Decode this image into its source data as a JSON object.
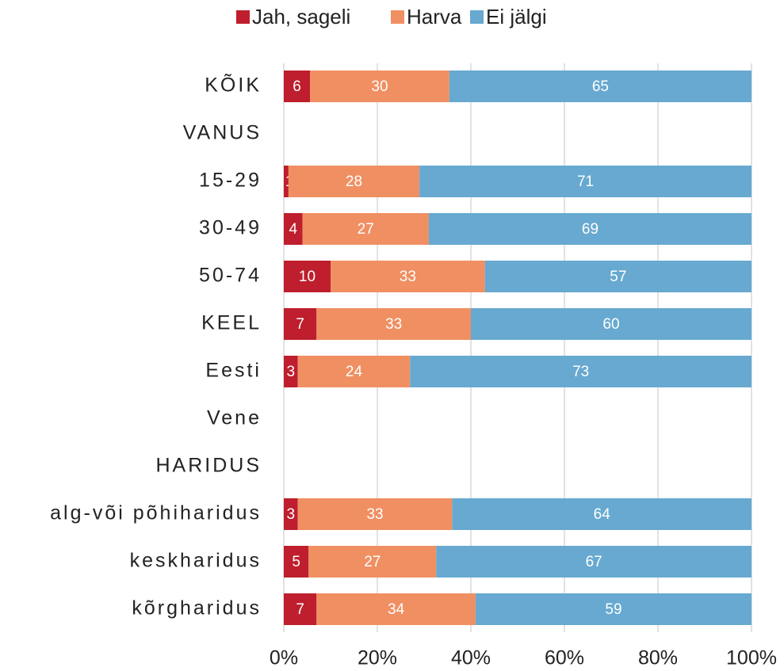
{
  "chart_data": {
    "type": "stacked-barh",
    "categories": [
      "KÕIK",
      "VANUS",
      "15-29",
      "30-49",
      "50-74",
      "KEEL",
      "Eesti",
      "Vene",
      "HARIDUS",
      "alg-või põhiharidus",
      "keskharidus",
      "kõrgharidus"
    ],
    "series": [
      {
        "name": "Jah, sageli",
        "color": "#be1e2d",
        "values": [
          5.6,
          null,
          1,
          4,
          10,
          7,
          3,
          null,
          null,
          3,
          5.3,
          7
        ],
        "value_labels": [
          "6",
          null,
          "1",
          "4",
          "10",
          "7",
          "3",
          null,
          null,
          "3",
          "5",
          "7"
        ]
      },
      {
        "name": "Harva",
        "color": "#f08f62",
        "values": [
          29.8,
          null,
          28,
          27,
          33,
          33,
          24,
          null,
          null,
          33,
          27.3,
          34
        ],
        "value_labels": [
          "30",
          null,
          "28",
          "27",
          "33",
          "33",
          "24",
          null,
          null,
          "33",
          "27",
          "34"
        ]
      },
      {
        "name": "Ei jälgi",
        "color": "#67a9d0",
        "values": [
          64.6,
          null,
          71,
          69,
          57,
          60,
          73,
          null,
          null,
          64,
          67.4,
          59
        ],
        "value_labels": [
          "65",
          null,
          "71",
          "69",
          "57",
          "60",
          "73",
          null,
          null,
          "64",
          "67",
          "59"
        ]
      }
    ],
    "xlim": [
      0,
      100
    ],
    "xticks": [
      {
        "value": 0,
        "label": "0%"
      },
      {
        "value": 20,
        "label": "20%"
      },
      {
        "value": 40,
        "label": "40%"
      },
      {
        "value": 60,
        "label": "60%"
      },
      {
        "value": 80,
        "label": "80%"
      },
      {
        "value": 100,
        "label": "100%"
      }
    ],
    "grid": true,
    "legend": "top"
  }
}
